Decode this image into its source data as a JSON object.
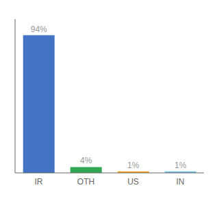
{
  "chart_data": {
    "type": "bar",
    "categories": [
      "IR",
      "OTH",
      "US",
      "IN"
    ],
    "values": [
      94,
      4,
      1,
      1
    ],
    "value_labels": [
      "94%",
      "4%",
      "1%",
      "1%"
    ],
    "colors": [
      "#4472c4",
      "#33a853",
      "#f4a522",
      "#74c0e0"
    ],
    "ylim": [
      0,
      105
    ],
    "yticks": [],
    "grid": false,
    "data_labels": true,
    "tick_labels": "x"
  }
}
